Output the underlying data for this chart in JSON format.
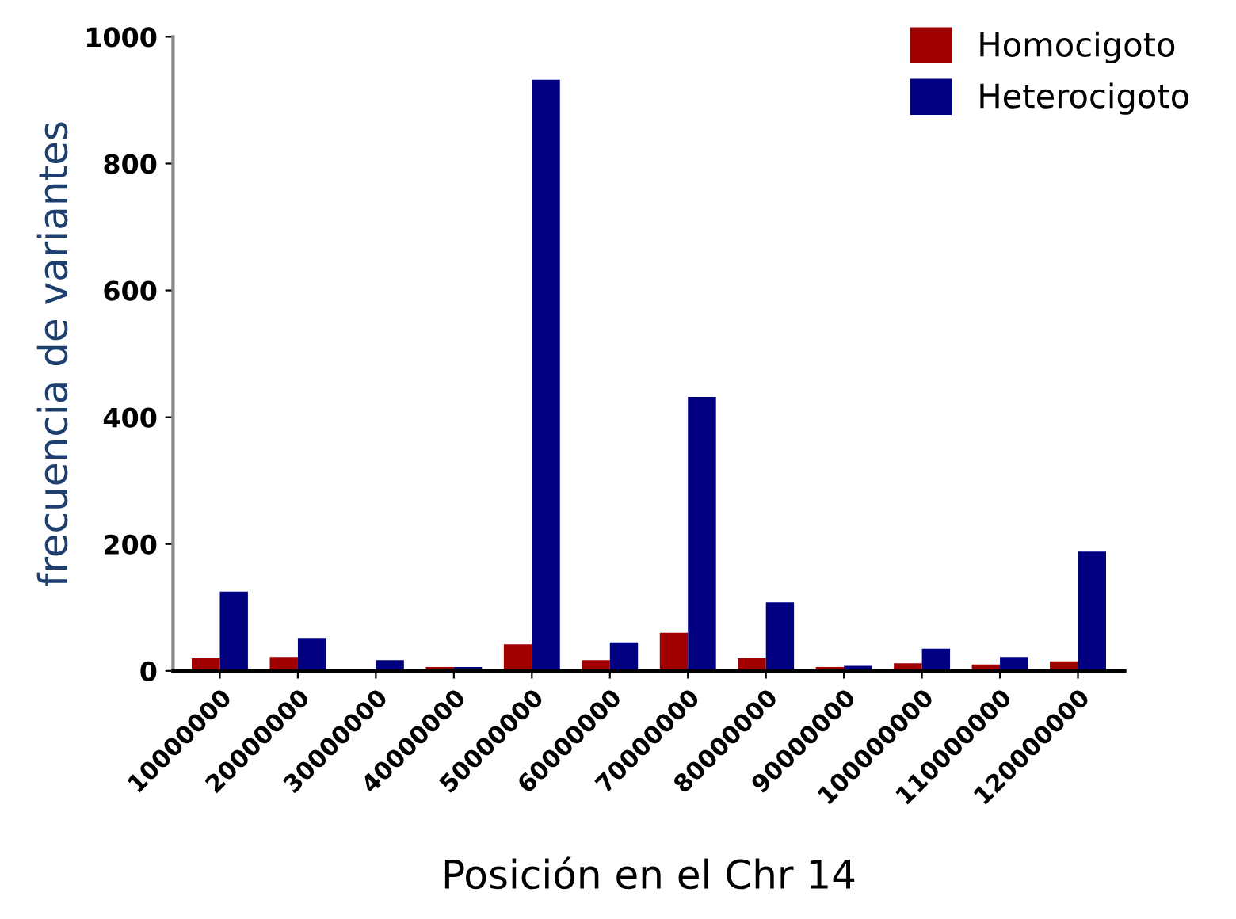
{
  "chart_data": {
    "type": "bar",
    "xlabel": "Posición en el Chr 14",
    "ylabel": "frecuencia de variantes",
    "categories": [
      "10000000",
      "20000000",
      "30000000",
      "40000000",
      "50000000",
      "60000000",
      "70000000",
      "80000000",
      "90000000",
      "100000000",
      "110000000",
      "120000000"
    ],
    "series": [
      {
        "name": "Homocigoto",
        "color": "#a00000",
        "values": [
          20,
          22,
          0,
          6,
          42,
          17,
          60,
          20,
          6,
          12,
          10,
          15
        ]
      },
      {
        "name": "Heterocigoto",
        "color": "#000080",
        "values": [
          125,
          52,
          17,
          6,
          932,
          45,
          432,
          108,
          8,
          35,
          22,
          188
        ]
      }
    ],
    "ylim": [
      0,
      1000
    ],
    "yticks": [
      0,
      200,
      400,
      600,
      800,
      1000
    ],
    "grid": false,
    "legend": "top right"
  }
}
